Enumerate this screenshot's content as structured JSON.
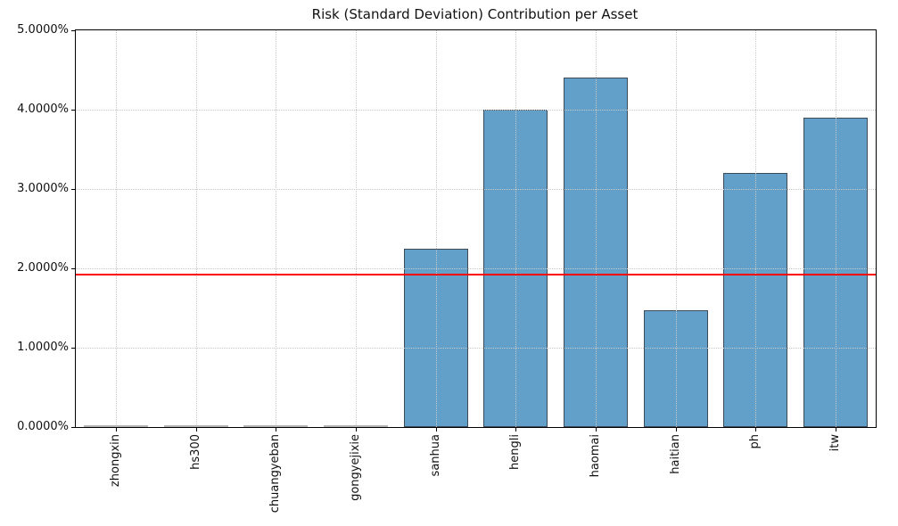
{
  "chart_data": {
    "type": "bar",
    "title": "Risk (Standard Deviation) Contribution per Asset",
    "categories": [
      "zhongxin",
      "hs300",
      "chuangyeban",
      "gongyejixie",
      "sanhua",
      "hengli",
      "haomai",
      "haitian",
      "ph",
      "itw"
    ],
    "values": [
      0.0,
      0.0,
      0.0,
      0.0,
      2.24,
      3.99,
      4.39,
      1.46,
      3.19,
      3.89
    ],
    "unit": "%",
    "xlabel": "",
    "ylabel": "",
    "ylim": [
      0,
      5
    ],
    "ytick_values": [
      0,
      1,
      2,
      3,
      4,
      5
    ],
    "ytick_labels": [
      "0.0000%",
      "1.0000%",
      "2.0000%",
      "3.0000%",
      "4.0000%",
      "5.0000%"
    ],
    "reference_line": {
      "name": "mean-risk-contribution-line",
      "value": 1.92,
      "color": "#ff0000"
    },
    "grid": {
      "style": "dotted",
      "axis": "both",
      "above_bars": true
    },
    "legend": "none",
    "colors": {
      "bar_fill": "#62a0ca",
      "bar_edge": "#3d4a57",
      "zero_bar": "#b4b4b4",
      "grid": "#c9c9c9",
      "axis": "#000000",
      "background": "#ffffff"
    },
    "bar_width_ratio": 0.8
  }
}
